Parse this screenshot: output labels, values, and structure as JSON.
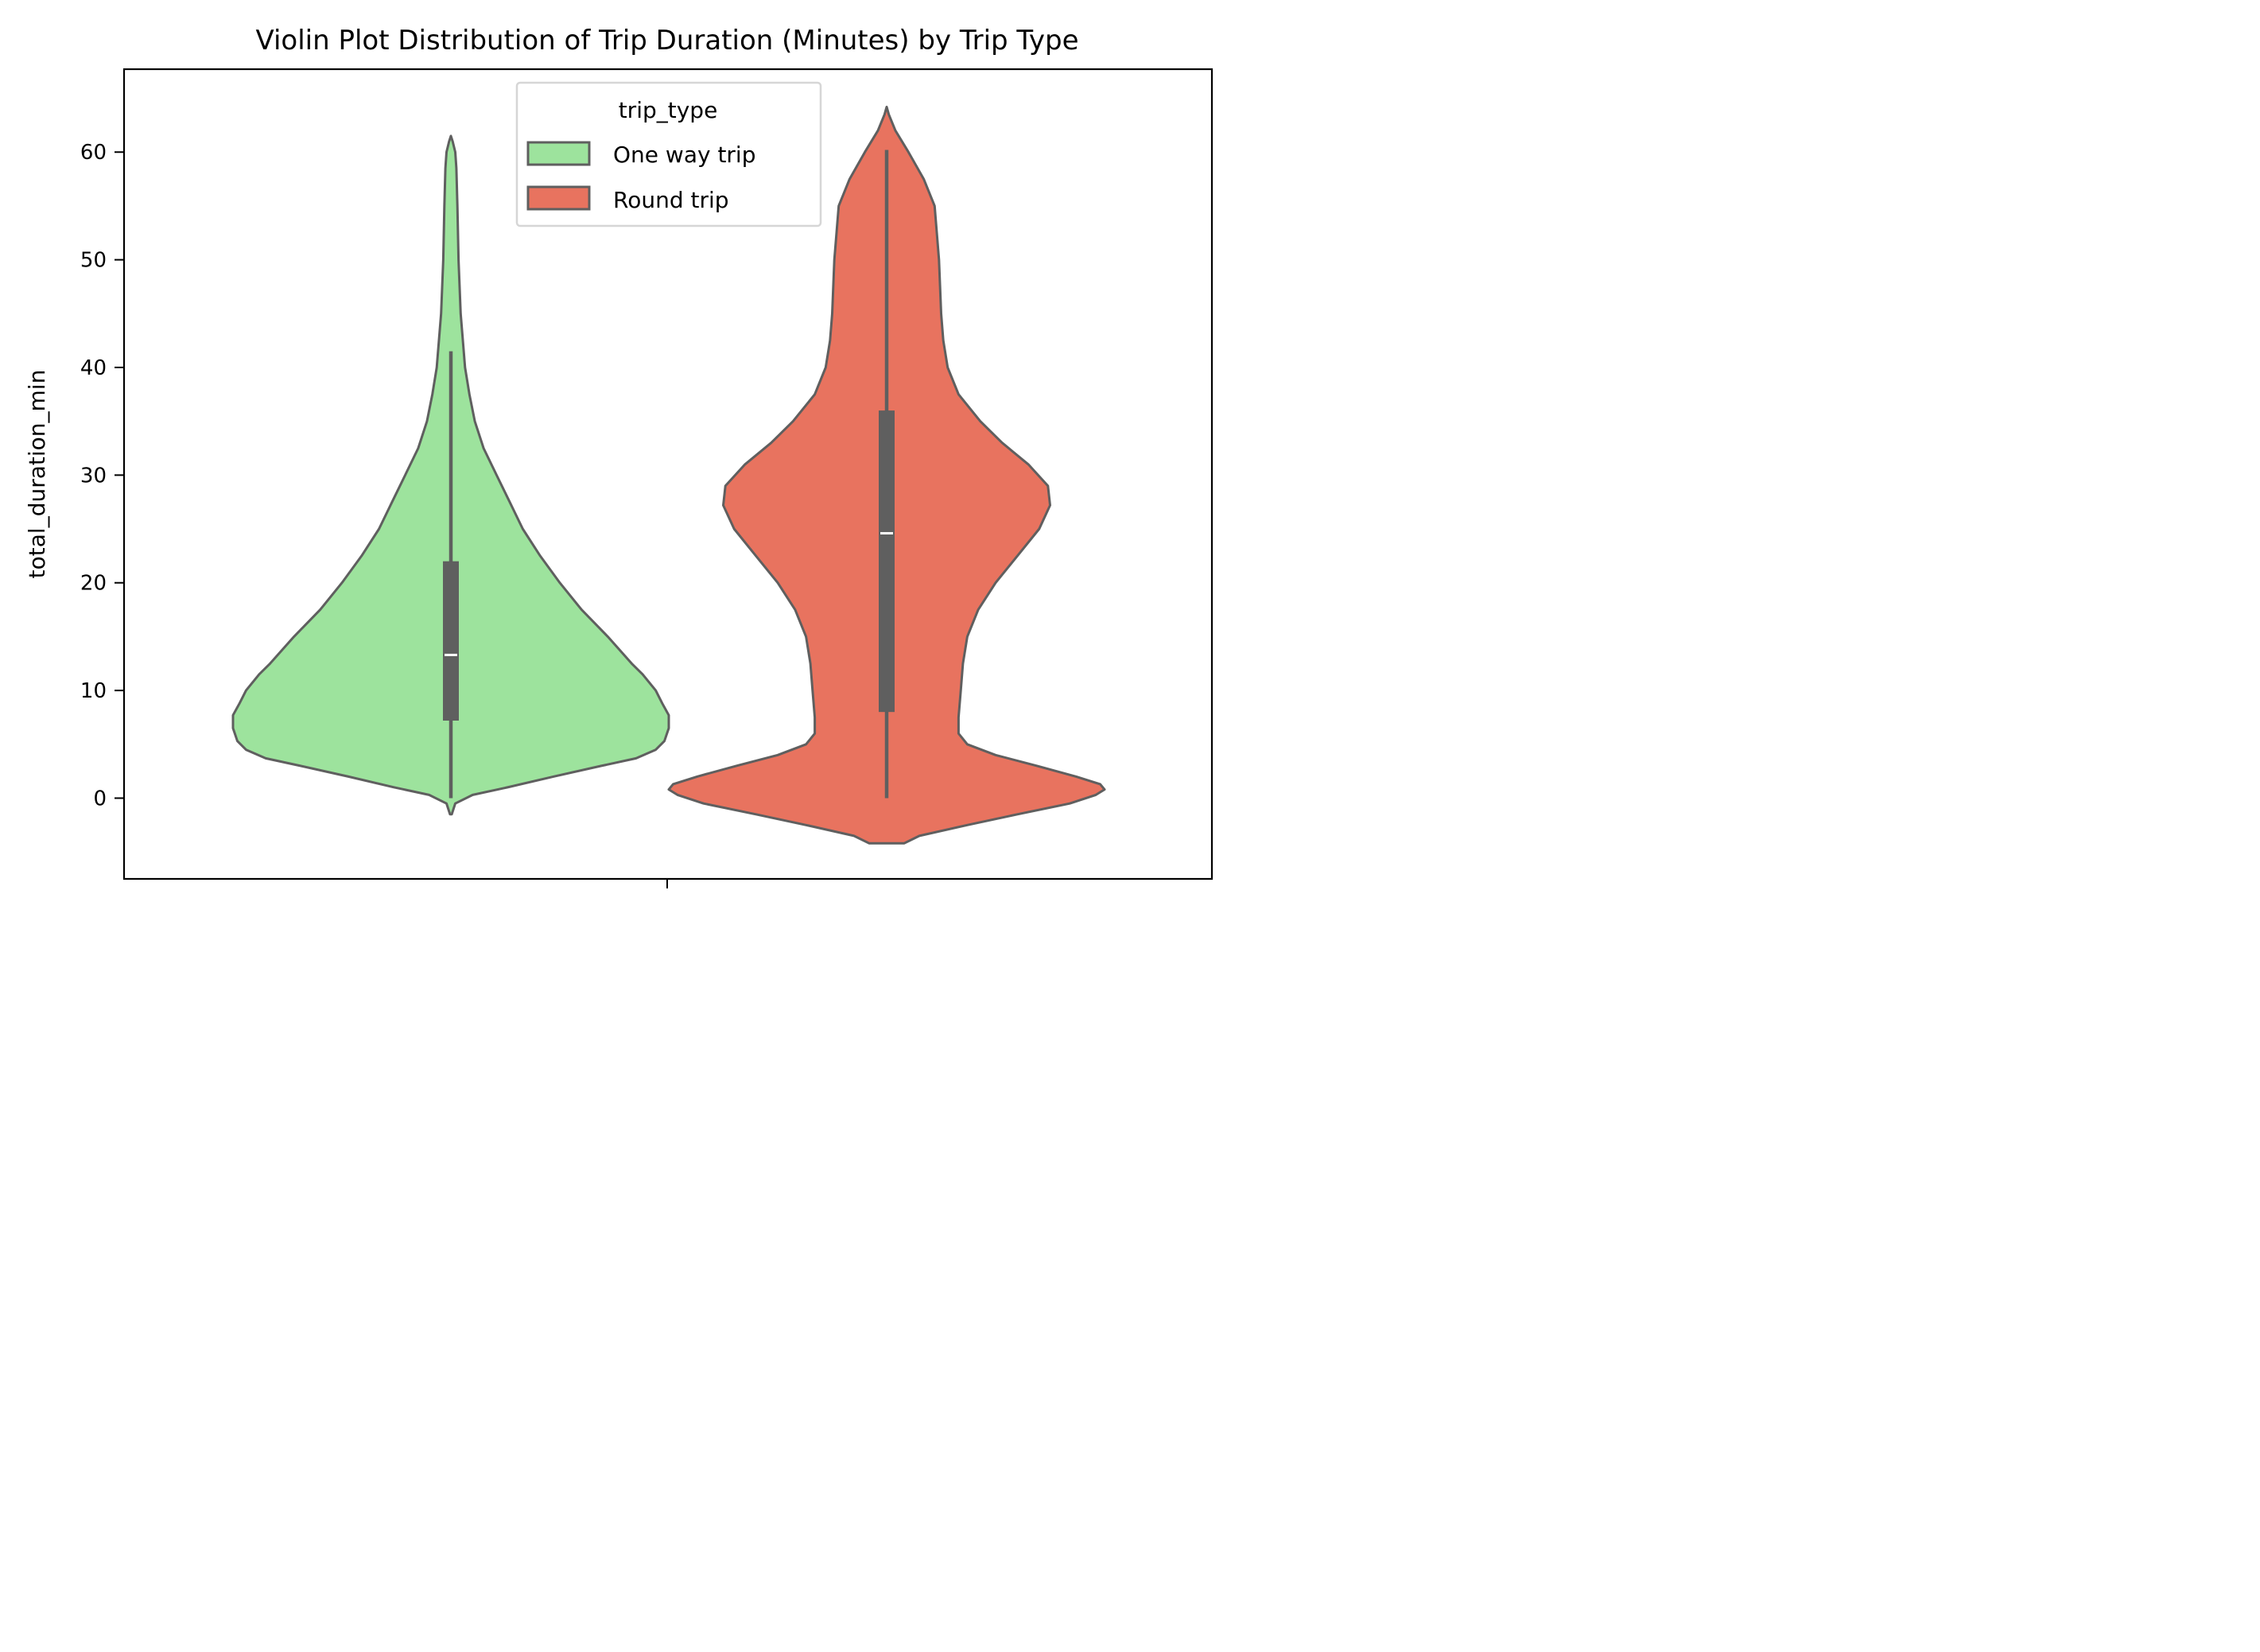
{
  "chart_data": {
    "type": "violin",
    "title": "Violin Plot Distribution of Trip Duration (Minutes) by Trip Type",
    "xlabel": "",
    "ylabel": "total_duration_min",
    "ylim": [
      -7.5,
      67.7
    ],
    "yticks": [
      0,
      10,
      20,
      30,
      40,
      50,
      60
    ],
    "grid": false,
    "legend": {
      "title": "trip_type",
      "position": "upper center"
    },
    "series": [
      {
        "name": "One way trip",
        "color": "#9de39d",
        "quartiles": {
          "whisker_low": 0,
          "q1": 7.2,
          "median": 13.3,
          "q3": 22,
          "whisker_high": 41.5
        },
        "density_half_width": [
          [
            -1.5,
            0.004
          ],
          [
            -0.5,
            0.02
          ],
          [
            0.3,
            0.1
          ],
          [
            1.0,
            0.26
          ],
          [
            2.0,
            0.47
          ],
          [
            3.0,
            0.69
          ],
          [
            3.7,
            0.85
          ],
          [
            4.5,
            0.94
          ],
          [
            5.3,
            0.98
          ],
          [
            6.5,
            1.0
          ],
          [
            7.7,
            1.0
          ],
          [
            8.8,
            0.97
          ],
          [
            10.0,
            0.94
          ],
          [
            11.5,
            0.88
          ],
          [
            12.5,
            0.83
          ],
          [
            15.0,
            0.72
          ],
          [
            17.5,
            0.6
          ],
          [
            20.0,
            0.5
          ],
          [
            22.5,
            0.41
          ],
          [
            25.0,
            0.33
          ],
          [
            27.5,
            0.27
          ],
          [
            30.0,
            0.21
          ],
          [
            32.5,
            0.15
          ],
          [
            35.0,
            0.11
          ],
          [
            37.5,
            0.085
          ],
          [
            40.0,
            0.065
          ],
          [
            45.0,
            0.045
          ],
          [
            50.0,
            0.035
          ],
          [
            55.0,
            0.03
          ],
          [
            58.5,
            0.025
          ],
          [
            60.0,
            0.02
          ],
          [
            61.0,
            0.008
          ],
          [
            61.5,
            0.0
          ]
        ]
      },
      {
        "name": "Round trip",
        "color": "#e8735f",
        "quartiles": {
          "whisker_low": 0,
          "q1": 8,
          "median": 24.6,
          "q3": 36,
          "whisker_high": 60.2
        },
        "density_half_width": [
          [
            -4.2,
            0.08
          ],
          [
            -3.5,
            0.15
          ],
          [
            -2.5,
            0.37
          ],
          [
            -1.5,
            0.6
          ],
          [
            -0.5,
            0.84
          ],
          [
            0.3,
            0.96
          ],
          [
            0.8,
            1.0
          ],
          [
            1.3,
            0.98
          ],
          [
            2.0,
            0.87
          ],
          [
            3.0,
            0.69
          ],
          [
            4.0,
            0.5
          ],
          [
            5.0,
            0.37
          ],
          [
            6.0,
            0.33
          ],
          [
            7.5,
            0.33
          ],
          [
            10.0,
            0.34
          ],
          [
            12.5,
            0.35
          ],
          [
            15.0,
            0.37
          ],
          [
            17.5,
            0.42
          ],
          [
            20.0,
            0.5
          ],
          [
            22.5,
            0.6
          ],
          [
            25.0,
            0.7
          ],
          [
            27.2,
            0.75
          ],
          [
            29.0,
            0.74
          ],
          [
            31.0,
            0.65
          ],
          [
            33.0,
            0.53
          ],
          [
            35.0,
            0.43
          ],
          [
            37.5,
            0.33
          ],
          [
            40.0,
            0.28
          ],
          [
            42.5,
            0.26
          ],
          [
            45.0,
            0.25
          ],
          [
            50.0,
            0.24
          ],
          [
            55.0,
            0.22
          ],
          [
            57.5,
            0.17
          ],
          [
            60.0,
            0.1
          ],
          [
            62.0,
            0.04
          ],
          [
            63.5,
            0.01
          ],
          [
            64.2,
            0.0
          ]
        ]
      }
    ]
  }
}
